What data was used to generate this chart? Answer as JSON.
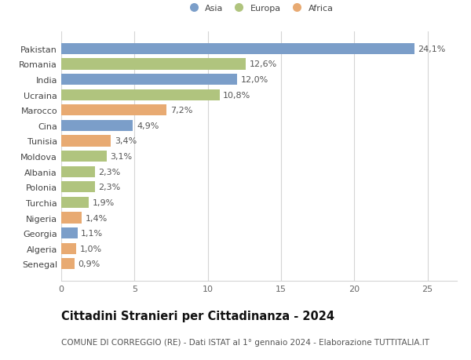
{
  "countries": [
    "Pakistan",
    "Romania",
    "India",
    "Ucraina",
    "Marocco",
    "Cina",
    "Tunisia",
    "Moldova",
    "Albania",
    "Polonia",
    "Turchia",
    "Nigeria",
    "Georgia",
    "Algeria",
    "Senegal"
  ],
  "values": [
    24.1,
    12.6,
    12.0,
    10.8,
    7.2,
    4.9,
    3.4,
    3.1,
    2.3,
    2.3,
    1.9,
    1.4,
    1.1,
    1.0,
    0.9
  ],
  "labels": [
    "24,1%",
    "12,6%",
    "12,0%",
    "10,8%",
    "7,2%",
    "4,9%",
    "3,4%",
    "3,1%",
    "2,3%",
    "2,3%",
    "1,9%",
    "1,4%",
    "1,1%",
    "1,0%",
    "0,9%"
  ],
  "continents": [
    "Asia",
    "Europa",
    "Asia",
    "Europa",
    "Africa",
    "Asia",
    "Africa",
    "Europa",
    "Europa",
    "Europa",
    "Europa",
    "Africa",
    "Asia",
    "Africa",
    "Africa"
  ],
  "colors": {
    "Asia": "#7b9ec9",
    "Europa": "#b0c47e",
    "Africa": "#e8aa72"
  },
  "title": "Cittadini Stranieri per Cittadinanza - 2024",
  "subtitle": "COMUNE DI CORREGGIO (RE) - Dati ISTAT al 1° gennaio 2024 - Elaborazione TUTTITALIA.IT",
  "xlim": [
    0,
    27
  ],
  "xticks": [
    0,
    5,
    10,
    15,
    20,
    25
  ],
  "background_color": "#ffffff",
  "grid_color": "#d5d5d5",
  "bar_height": 0.72,
  "label_fontsize": 8,
  "tick_fontsize": 8,
  "title_fontsize": 10.5,
  "subtitle_fontsize": 7.5
}
